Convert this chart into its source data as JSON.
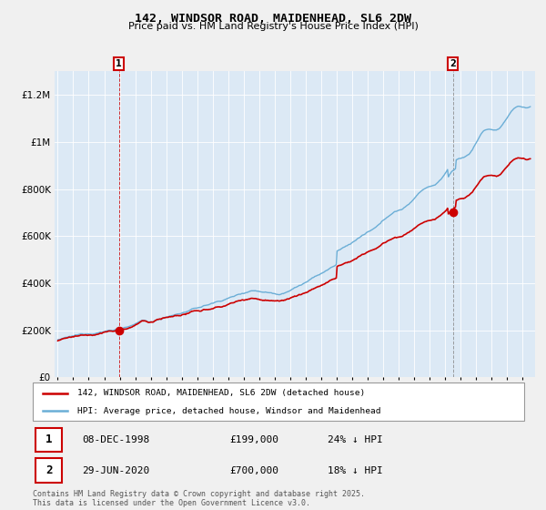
{
  "title": "142, WINDSOR ROAD, MAIDENHEAD, SL6 2DW",
  "subtitle": "Price paid vs. HM Land Registry's House Price Index (HPI)",
  "ylim": [
    0,
    1300000
  ],
  "yticks": [
    0,
    200000,
    400000,
    600000,
    800000,
    1000000,
    1200000
  ],
  "ytick_labels": [
    "£0",
    "£200K",
    "£400K",
    "£600K",
    "£800K",
    "£1M",
    "£1.2M"
  ],
  "hpi_color": "#6baed6",
  "price_color": "#cc0000",
  "plot_bg_color": "#dce9f5",
  "bg_color": "#f0f0f0",
  "marker1_date_num": 1998.94,
  "marker1_price": 199000,
  "marker2_date_num": 2020.49,
  "marker2_price": 700000,
  "legend_line1": "142, WINDSOR ROAD, MAIDENHEAD, SL6 2DW (detached house)",
  "legend_line2": "HPI: Average price, detached house, Windsor and Maidenhead",
  "annotation1": [
    "1",
    "08-DEC-1998",
    "£199,000",
    "24% ↓ HPI"
  ],
  "annotation2": [
    "2",
    "29-JUN-2020",
    "£700,000",
    "18% ↓ HPI"
  ],
  "footnote": "Contains HM Land Registry data © Crown copyright and database right 2025.\nThis data is licensed under the Open Government Licence v3.0."
}
